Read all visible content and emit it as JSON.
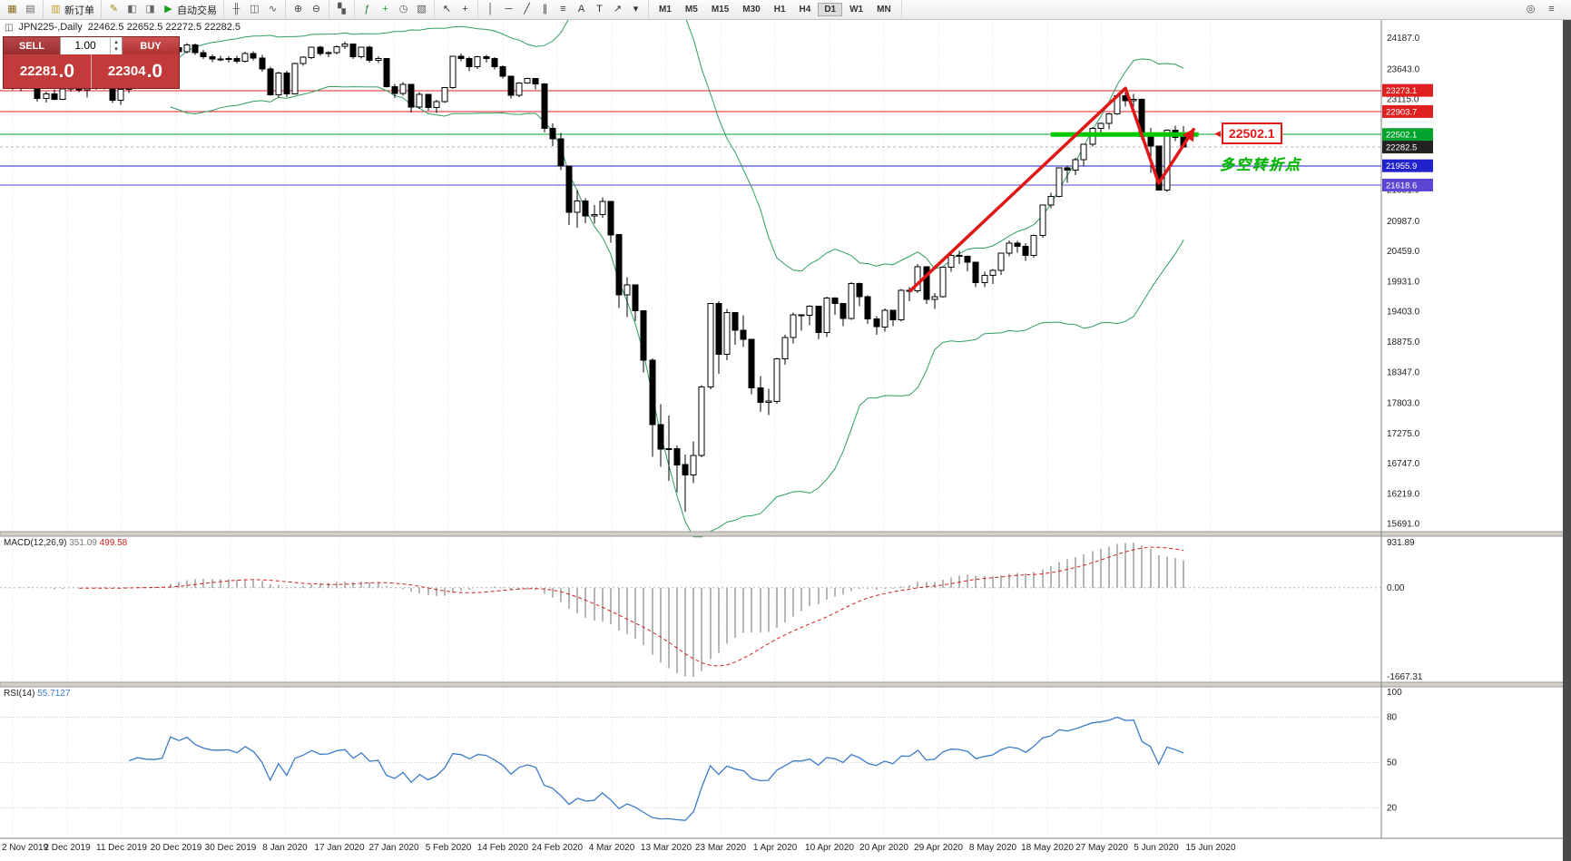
{
  "icons": {
    "title_icon": "◫",
    "callout_arrow": "◀",
    "spin_up": "▴",
    "spin_down": "▾"
  },
  "toolbar": {
    "groups": [
      {
        "name": "charts",
        "items": [
          {
            "name": "new-chart-icon",
            "glyph": "▦",
            "color": "#8a6d1f"
          },
          {
            "name": "profiles-icon",
            "glyph": "▤",
            "color": "#666666"
          }
        ]
      },
      {
        "name": "order",
        "items": [
          {
            "name": "new-order-button",
            "glyph": "▥",
            "color": "#c89a1e",
            "label": "新订单"
          }
        ]
      },
      {
        "name": "apps",
        "items": [
          {
            "name": "metaeditor-icon",
            "glyph": "✎",
            "color": "#9b8a10"
          },
          {
            "name": "market-watch-icon",
            "glyph": "◧",
            "color": "#666666"
          },
          {
            "name": "navigator-icon",
            "glyph": "◨",
            "color": "#666666"
          },
          {
            "name": "autotrading-button",
            "glyph": "▶",
            "color": "#17a017",
            "label": "自动交易"
          }
        ]
      },
      {
        "name": "chart-types",
        "items": [
          {
            "name": "bars-icon",
            "glyph": "╫",
            "color": "#555555"
          },
          {
            "name": "candles-icon",
            "glyph": "◫",
            "color": "#555555"
          },
          {
            "name": "line-chart-icon",
            "glyph": "∿",
            "color": "#555555"
          }
        ]
      },
      {
        "name": "zoom",
        "items": [
          {
            "name": "zoom-in-icon",
            "glyph": "⊕",
            "color": "#444444"
          },
          {
            "name": "zoom-out-icon",
            "glyph": "⊖",
            "color": "#444444"
          }
        ]
      },
      {
        "name": "windows",
        "items": [
          {
            "name": "tile-windows-icon",
            "glyph": "▚",
            "color": "#555555"
          }
        ]
      },
      {
        "name": "indicators",
        "items": [
          {
            "name": "indicators-icon",
            "glyph": "ƒ",
            "color": "#1a7a1a"
          },
          {
            "name": "add-indicator-icon",
            "glyph": "+",
            "color": "#17a017"
          },
          {
            "name": "periods-icon",
            "glyph": "◷",
            "color": "#555555"
          },
          {
            "name": "templates-icon",
            "glyph": "▧",
            "color": "#555555"
          }
        ]
      },
      {
        "name": "cursor",
        "items": [
          {
            "name": "cursor-icon",
            "glyph": "↖",
            "color": "#333333"
          },
          {
            "name": "crosshair-icon",
            "glyph": "+",
            "color": "#333333"
          }
        ]
      },
      {
        "name": "objects",
        "items": [
          {
            "name": "vertical-line-icon",
            "glyph": "│",
            "color": "#333333"
          },
          {
            "name": "horizontal-line-icon",
            "glyph": "─",
            "color": "#333333"
          },
          {
            "name": "trendline-icon",
            "glyph": "╱",
            "color": "#333333"
          },
          {
            "name": "channel-icon",
            "glyph": "∥",
            "color": "#333333"
          },
          {
            "name": "fibonacci-icon",
            "glyph": "≡",
            "color": "#333333"
          },
          {
            "name": "text-icon",
            "glyph": "A",
            "color": "#333333"
          },
          {
            "name": "label-icon",
            "glyph": "T",
            "color": "#333333"
          },
          {
            "name": "arrows-icon",
            "glyph": "↗",
            "color": "#333333"
          },
          {
            "name": "objects-dropdown-icon",
            "glyph": "▾",
            "color": "#333333"
          }
        ]
      }
    ],
    "timeframes": [
      "M1",
      "M5",
      "M15",
      "M30",
      "H1",
      "H4",
      "D1",
      "W1",
      "MN"
    ],
    "active_timeframe": "D1",
    "right_items": [
      {
        "name": "quick-search-icon",
        "glyph": "◎"
      },
      {
        "name": "toolbar-more-icon",
        "glyph": "≡"
      }
    ]
  },
  "chart_title": {
    "symbol_period": "JPN225-,Daily",
    "ohlc": "22462.5 22652.5 22272.5 22282.5"
  },
  "trade_panel": {
    "sell_label": "SELL",
    "buy_label": "BUY",
    "volume": "1.00",
    "sell_price": "22281",
    "sell_frac": ".0",
    "buy_price": "22304",
    "buy_frac": ".0"
  },
  "annotations": {
    "price_callout": "22502.1",
    "turning_point": "多空转折点"
  },
  "macd": {
    "label": "MACD(12,26,9)",
    "value_macd": "351.09",
    "value_signal": "499.58",
    "axis": [
      "931.89",
      "0.00",
      "-1667.31"
    ]
  },
  "rsi": {
    "label": "RSI(14)",
    "value": "55.7127",
    "axis": [
      "100",
      "80",
      "50",
      "20"
    ],
    "levels": [
      80,
      50,
      20
    ]
  },
  "price_axis": {
    "labels": [
      "24187.0",
      "23643.0",
      "23115.0",
      "21531.0",
      "20987.0",
      "20459.0",
      "19931.0",
      "19403.0",
      "18875.0",
      "18347.0",
      "17803.0",
      "17275.0",
      "16747.0",
      "16219.0",
      "15691.0"
    ],
    "markers": [
      {
        "text": "23273.1",
        "price": 23273.1,
        "color": "#e02020"
      },
      {
        "text": "22903.7",
        "price": 22903.7,
        "color": "#e02020"
      },
      {
        "text": "22502.1",
        "price": 22502.1,
        "color": "#00a32e"
      },
      {
        "text": "22282.5",
        "price": 22282.5,
        "color": "#222222"
      },
      {
        "text": "21955.9",
        "price": 21955.9,
        "color": "#2222cc"
      },
      {
        "text": "21618.6",
        "price": 21618.6,
        "color": "#5a46d2"
      }
    ]
  },
  "dates": [
    "2 Nov 2019",
    "2 Dec 2019",
    "11 Dec 2019",
    "20 Dec 2019",
    "30 Dec 2019",
    "8 Jan 2020",
    "17 Jan 2020",
    "27 Jan 2020",
    "5 Feb 2020",
    "14 Feb 2020",
    "24 Feb 2020",
    "4 Mar 2020",
    "13 Mar 2020",
    "23 Mar 2020",
    "1 Apr 2020",
    "10 Apr 2020",
    "20 Apr 2020",
    "29 Apr 2020",
    "8 May 2020",
    "18 May 2020",
    "27 May 2020",
    "5 Jun 2020",
    "15 Jun 2020"
  ],
  "chart_data": {
    "type": "candlestick",
    "symbol": "JPN225-",
    "timeframe": "Daily",
    "ohlc_current": {
      "open": 22462.5,
      "high": 22652.5,
      "low": 22272.5,
      "close": 22282.5
    },
    "indicators": {
      "bollinger_period": 20,
      "bollinger_dev": 2,
      "macd": [
        12,
        26,
        9
      ],
      "rsi_period": 14
    },
    "lines": [
      {
        "price": 23273.1,
        "color": "#e02020",
        "width": 1
      },
      {
        "price": 22903.7,
        "color": "#e02020",
        "width": 1
      },
      {
        "price": 22502.1,
        "color": "#00a32e",
        "width": 1
      },
      {
        "price": 22282.5,
        "color": "#b4b4b4",
        "width": 1,
        "dash": "3,3"
      },
      {
        "price": 21955.9,
        "color": "#2222cc",
        "width": 1
      },
      {
        "price": 21618.6,
        "color": "#5a46d2",
        "width": 1
      }
    ],
    "highlight": {
      "price": 22502.1,
      "from": 125,
      "to": 142.8,
      "color": "#00c800",
      "width": 5
    },
    "trend_arrow": {
      "color": "#e01818",
      "width": 3.5,
      "points": [
        [
          108,
          19760
        ],
        [
          134,
          23310
        ],
        [
          138,
          21650
        ],
        [
          142.3,
          22610
        ]
      ]
    },
    "candles": [
      [
        23390,
        23420,
        23280,
        23310
      ],
      [
        23310,
        23450,
        23260,
        23420
      ],
      [
        23420,
        23480,
        23330,
        23350
      ],
      [
        23350,
        23400,
        23080,
        23130
      ],
      [
        23130,
        23250,
        23060,
        23210
      ],
      [
        23210,
        23290,
        23100,
        23120
      ],
      [
        23120,
        23330,
        23100,
        23300
      ],
      [
        23300,
        23440,
        23250,
        23420
      ],
      [
        23420,
        23460,
        23240,
        23280
      ],
      [
        23280,
        23350,
        23150,
        23320
      ],
      [
        23320,
        23520,
        23280,
        23500
      ],
      [
        23500,
        23540,
        23290,
        23330
      ],
      [
        23330,
        23360,
        23050,
        23100
      ],
      [
        23100,
        23320,
        23020,
        23290
      ],
      [
        23290,
        23390,
        23230,
        23350
      ],
      [
        23350,
        23450,
        23300,
        23430
      ],
      [
        23430,
        23450,
        23330,
        23400
      ],
      [
        23400,
        23440,
        23310,
        23390
      ],
      [
        23390,
        23480,
        23350,
        23420
      ],
      [
        23420,
        24060,
        23400,
        24020
      ],
      [
        24020,
        24080,
        23900,
        23950
      ],
      [
        23950,
        24100,
        23920,
        24070
      ],
      [
        24070,
        24090,
        23890,
        23930
      ],
      [
        23930,
        23980,
        23820,
        23860
      ],
      [
        23860,
        23900,
        23770,
        23820
      ],
      [
        23820,
        23880,
        23780,
        23820
      ],
      [
        23820,
        23870,
        23760,
        23830
      ],
      [
        23830,
        23880,
        23740,
        23780
      ],
      [
        23780,
        23950,
        23760,
        23920
      ],
      [
        23920,
        23960,
        23800,
        23840
      ],
      [
        23840,
        23890,
        23600,
        23650
      ],
      [
        23650,
        23690,
        23180,
        23200
      ],
      [
        23200,
        23600,
        23150,
        23580
      ],
      [
        23580,
        23620,
        23160,
        23210
      ],
      [
        23210,
        23760,
        23200,
        23740
      ],
      [
        23740,
        23870,
        23700,
        23850
      ],
      [
        23850,
        24040,
        23820,
        24030
      ],
      [
        24030,
        24050,
        23880,
        23920
      ],
      [
        23920,
        23960,
        23850,
        23930
      ],
      [
        23930,
        24060,
        23900,
        24040
      ],
      [
        24040,
        24120,
        24000,
        24080
      ],
      [
        24080,
        24090,
        23820,
        23860
      ],
      [
        23860,
        24040,
        23830,
        24030
      ],
      [
        24030,
        24050,
        23760,
        23800
      ],
      [
        23800,
        23870,
        23750,
        23830
      ],
      [
        23830,
        23840,
        23320,
        23340
      ],
      [
        23340,
        23390,
        23140,
        23220
      ],
      [
        23220,
        23420,
        23180,
        23380
      ],
      [
        23380,
        23390,
        22890,
        22980
      ],
      [
        22980,
        23240,
        22950,
        23200
      ],
      [
        23200,
        23210,
        22920,
        22970
      ],
      [
        22970,
        23110,
        22880,
        23080
      ],
      [
        23080,
        23330,
        23050,
        23320
      ],
      [
        23320,
        23880,
        23300,
        23870
      ],
      [
        23870,
        23920,
        23780,
        23830
      ],
      [
        23830,
        23860,
        23610,
        23690
      ],
      [
        23690,
        23880,
        23650,
        23860
      ],
      [
        23860,
        23890,
        23760,
        23830
      ],
      [
        23830,
        23850,
        23640,
        23690
      ],
      [
        23690,
        23710,
        23480,
        23520
      ],
      [
        23520,
        23530,
        23130,
        23190
      ],
      [
        23190,
        23420,
        23160,
        23400
      ],
      [
        23400,
        23500,
        23390,
        23480
      ],
      [
        23480,
        23490,
        23290,
        23390
      ],
      [
        23390,
        23400,
        22540,
        22610
      ],
      [
        22610,
        22700,
        22300,
        22430
      ],
      [
        22430,
        22530,
        21880,
        21950
      ],
      [
        21950,
        21960,
        20920,
        21140
      ],
      [
        21140,
        21530,
        20870,
        21340
      ],
      [
        21340,
        21390,
        20950,
        21080
      ],
      [
        21080,
        21270,
        20940,
        21100
      ],
      [
        21100,
        21400,
        21050,
        21330
      ],
      [
        21330,
        21340,
        20610,
        20750
      ],
      [
        20750,
        20760,
        19470,
        19700
      ],
      [
        19700,
        20010,
        19310,
        19870
      ],
      [
        19870,
        19880,
        19240,
        19420
      ],
      [
        19420,
        19430,
        18340,
        18560
      ],
      [
        18560,
        18590,
        16870,
        17430
      ],
      [
        17430,
        17790,
        16690,
        17000
      ],
      [
        17000,
        17590,
        16450,
        17010
      ],
      [
        17010,
        17070,
        16250,
        16730
      ],
      [
        16730,
        16910,
        15910,
        16550
      ],
      [
        16550,
        17140,
        16410,
        16890
      ],
      [
        16890,
        18120,
        16860,
        18090
      ],
      [
        18090,
        19560,
        18050,
        19550
      ],
      [
        19550,
        19590,
        18320,
        18660
      ],
      [
        18660,
        19450,
        18560,
        19390
      ],
      [
        19390,
        19400,
        18830,
        19080
      ],
      [
        19080,
        19340,
        18790,
        18920
      ],
      [
        18920,
        18930,
        17960,
        18070
      ],
      [
        18070,
        18280,
        17650,
        17820
      ],
      [
        17820,
        18060,
        17600,
        17840
      ],
      [
        17840,
        18600,
        17800,
        18580
      ],
      [
        18580,
        19000,
        18480,
        18950
      ],
      [
        18950,
        19390,
        18850,
        19350
      ],
      [
        19350,
        19360,
        19070,
        19340
      ],
      [
        19340,
        19520,
        19170,
        19500
      ],
      [
        19500,
        19510,
        18920,
        19040
      ],
      [
        19040,
        19670,
        18960,
        19640
      ],
      [
        19640,
        19660,
        19350,
        19550
      ],
      [
        19550,
        19560,
        19150,
        19290
      ],
      [
        19290,
        19920,
        19260,
        19900
      ],
      [
        19900,
        19910,
        19500,
        19670
      ],
      [
        19670,
        19690,
        19190,
        19280
      ],
      [
        19280,
        19330,
        19000,
        19140
      ],
      [
        19140,
        19460,
        19060,
        19430
      ],
      [
        19430,
        19440,
        19150,
        19260
      ],
      [
        19260,
        19800,
        19230,
        19780
      ],
      [
        19780,
        19830,
        19590,
        19770
      ],
      [
        19770,
        20240,
        19730,
        20190
      ],
      [
        20190,
        20200,
        19540,
        19620
      ],
      [
        19620,
        19730,
        19450,
        19670
      ],
      [
        19670,
        20190,
        19650,
        20180
      ],
      [
        20180,
        20420,
        20100,
        20390
      ],
      [
        20390,
        20470,
        20240,
        20370
      ],
      [
        20370,
        20390,
        20110,
        20270
      ],
      [
        20270,
        20280,
        19830,
        19910
      ],
      [
        19910,
        20100,
        19830,
        20040
      ],
      [
        20040,
        20150,
        19890,
        20130
      ],
      [
        20130,
        20440,
        20050,
        20430
      ],
      [
        20430,
        20650,
        20370,
        20600
      ],
      [
        20600,
        20640,
        20440,
        20550
      ],
      [
        20550,
        20600,
        20290,
        20390
      ],
      [
        20390,
        20750,
        20350,
        20740
      ],
      [
        20740,
        21280,
        20700,
        21270
      ],
      [
        21270,
        21480,
        21210,
        21420
      ],
      [
        21420,
        21930,
        21400,
        21920
      ],
      [
        21920,
        21950,
        21660,
        21880
      ],
      [
        21880,
        22090,
        21790,
        22060
      ],
      [
        22060,
        22340,
        21940,
        22330
      ],
      [
        22330,
        22630,
        22290,
        22610
      ],
      [
        22610,
        22710,
        22510,
        22700
      ],
      [
        22700,
        22880,
        22590,
        22860
      ],
      [
        22860,
        23190,
        22850,
        23180
      ],
      [
        23180,
        23290,
        22990,
        23090
      ],
      [
        23090,
        23210,
        22990,
        23120
      ],
      [
        23120,
        23130,
        22410,
        22470
      ],
      [
        22470,
        22620,
        21830,
        22300
      ],
      [
        22300,
        22310,
        21520,
        21530
      ],
      [
        21530,
        22590,
        21500,
        22580
      ],
      [
        22580,
        22660,
        22390,
        22450
      ],
      [
        22462.5,
        22652.5,
        22272.5,
        22282.5
      ]
    ]
  }
}
